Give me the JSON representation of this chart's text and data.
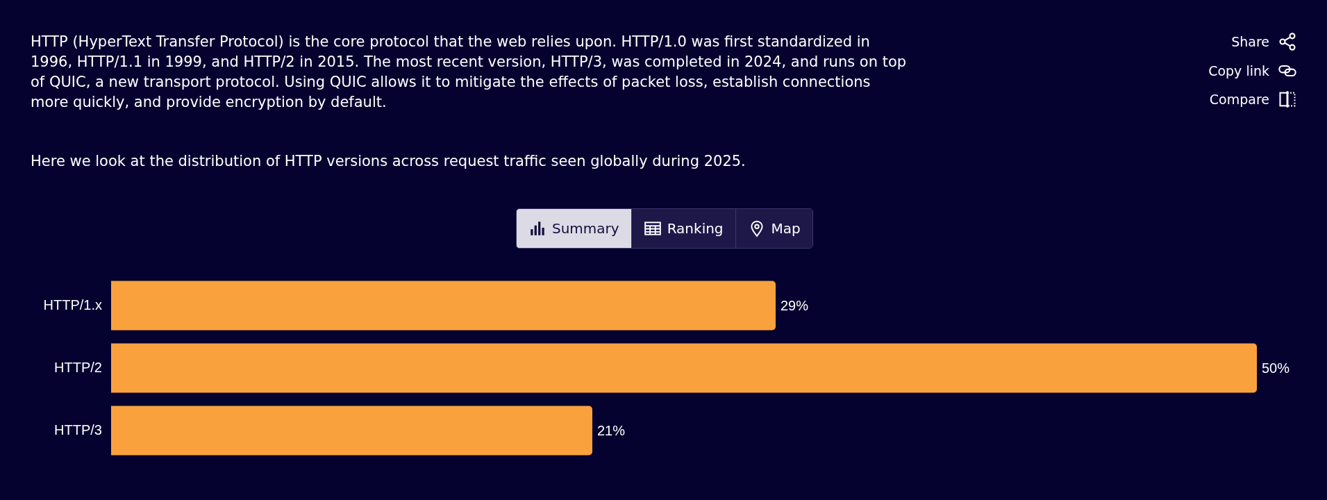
{
  "chart_data": {
    "type": "bar",
    "orientation": "horizontal",
    "categories": [
      "HTTP/1.x",
      "HTTP/2",
      "HTTP/3"
    ],
    "values": [
      29,
      50,
      21
    ],
    "value_labels": [
      "29%",
      "50%",
      "21%"
    ],
    "color": "#f9a13d",
    "tick_labels": "y",
    "annotations": [
      "HTTP (HyperText Transfer Protocol) is the core protocol that the web relies upon. HTTP/1.0 was first standardized in 1996, HTTP/1.1 in 1999, and HTTP/2 in 2015. The most recent version, HTTP/3, was completed in 2024, and runs on top of QUIC, a new transport protocol. Using QUIC allows it to mitigate the effects of packet loss, establish connections more quickly, and provide encryption by default.",
      "Here we look at the distribution of HTTP versions across request traffic seen globally during 2025.",
      "Share",
      "Copy link",
      "Compare",
      "Summary",
      "Ranking",
      "Map"
    ]
  }
}
